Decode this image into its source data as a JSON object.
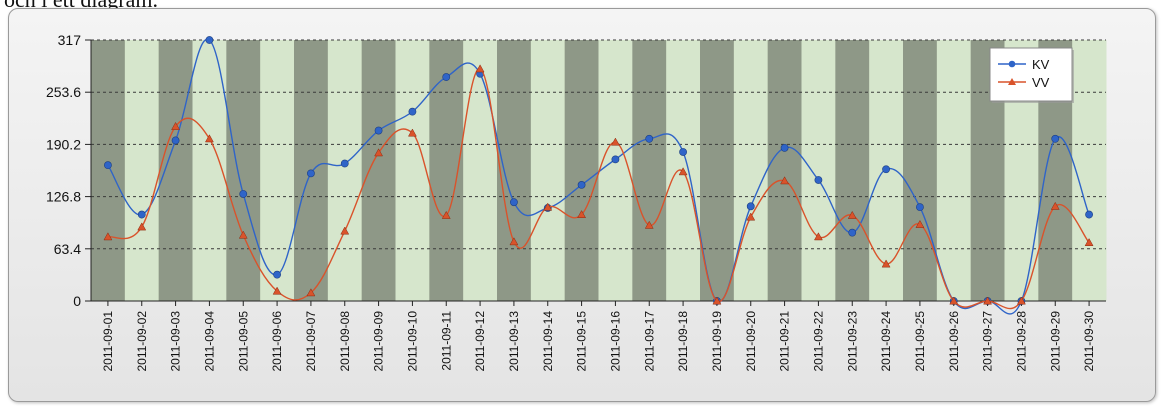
{
  "caption_text": "och i ett diagram.",
  "chart_data": {
    "type": "line",
    "x": [
      "2011-09-01",
      "2011-09-02",
      "2011-09-03",
      "2011-09-04",
      "2011-09-05",
      "2011-09-06",
      "2011-09-07",
      "2011-09-08",
      "2011-09-09",
      "2011-09-10",
      "2011-09-11",
      "2011-09-12",
      "2011-09-13",
      "2011-09-14",
      "2011-09-15",
      "2011-09-16",
      "2011-09-17",
      "2011-09-18",
      "2011-09-19",
      "2011-09-20",
      "2011-09-21",
      "2011-09-22",
      "2011-09-23",
      "2011-09-24",
      "2011-09-25",
      "2011-09-26",
      "2011-09-27",
      "2011-09-28",
      "2011-09-29",
      "2011-09-30"
    ],
    "series": [
      {
        "name": "KV",
        "color": "#2f64c8",
        "marker": "circle",
        "values": [
          165,
          105,
          195,
          317,
          130,
          32,
          155,
          167,
          207,
          230,
          272,
          276,
          120,
          113,
          141,
          172,
          197,
          181,
          0,
          115,
          186,
          147,
          83,
          160,
          114,
          0,
          0,
          0,
          197,
          105
        ]
      },
      {
        "name": "VV",
        "color": "#d9532b",
        "marker": "triangle",
        "values": [
          78,
          90,
          212,
          197,
          80,
          12,
          10,
          85,
          180,
          204,
          104,
          282,
          72,
          114,
          105,
          193,
          92,
          157,
          0,
          102,
          146,
          78,
          104,
          45,
          93,
          0,
          0,
          0,
          115,
          71
        ]
      }
    ],
    "ylim": [
      0,
      317
    ],
    "yticks": [
      "0",
      "63.4",
      "126.8",
      "190.2",
      "253.6",
      "317"
    ],
    "grid": true,
    "legend_position": "top-right",
    "background": "alternating-stripes"
  }
}
